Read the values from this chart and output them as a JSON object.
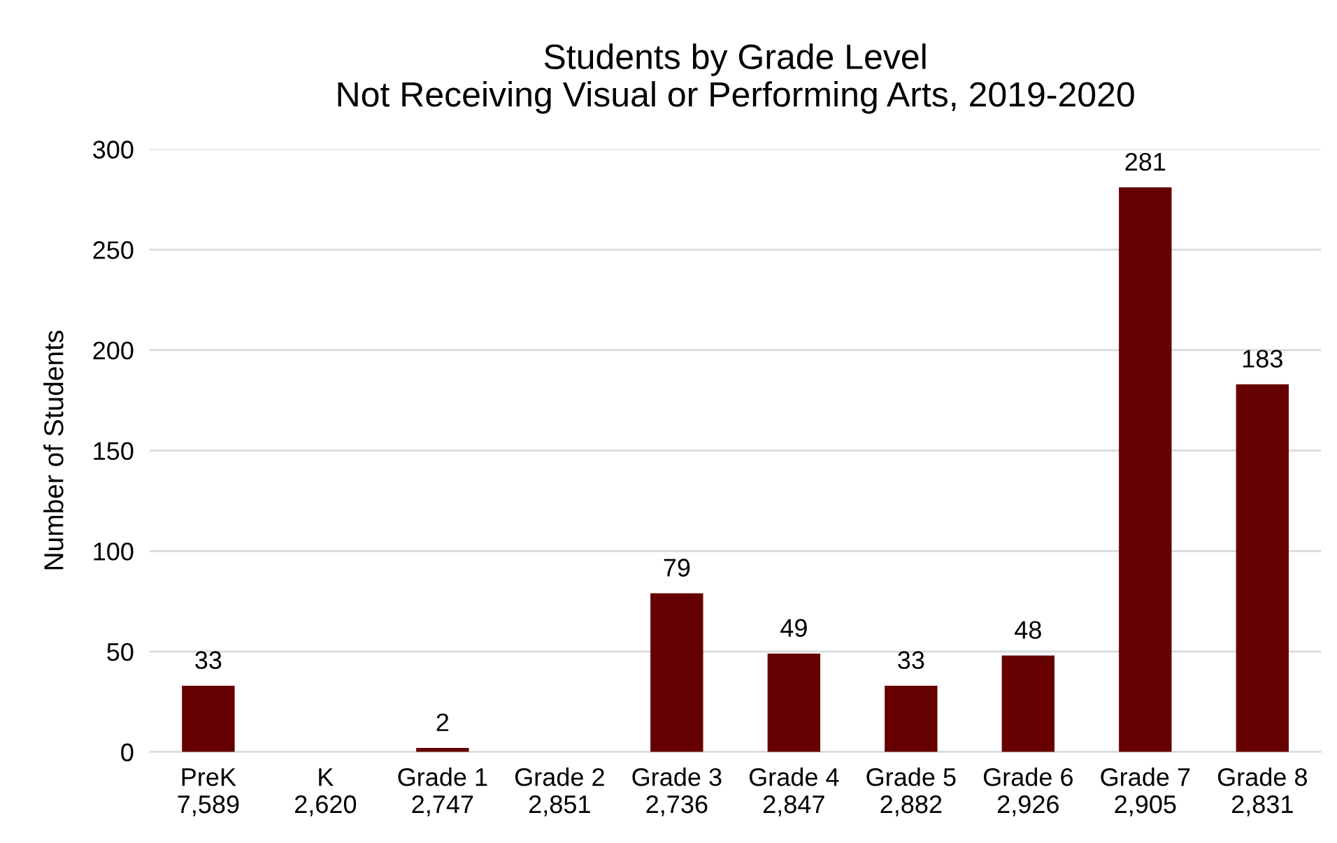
{
  "chart_data": {
    "type": "bar",
    "title": "Students by Grade Level\nNot Receiving Visual or Performing Arts, 2019-2020",
    "ylabel": "Number of Students",
    "categories": [
      "PreK\n7,589",
      "K\n2,620",
      "Grade 1\n2,747",
      "Grade 2\n2,851",
      "Grade 3\n2,736",
      "Grade 4\n2,847",
      "Grade 5\n2,882",
      "Grade 6\n2,926",
      "Grade 7\n2,905",
      "Grade 8\n2,831"
    ],
    "values": [
      33,
      null,
      2,
      null,
      79,
      49,
      33,
      48,
      281,
      183
    ],
    "value_labels": [
      "33",
      null,
      "2",
      null,
      "79",
      "49",
      "33",
      "48",
      "281",
      "183"
    ],
    "color": "#660000",
    "ylim": [
      0,
      300
    ],
    "yticks": [
      0,
      50,
      100,
      150,
      200,
      250,
      300
    ],
    "grid": "y",
    "legend": false
  }
}
